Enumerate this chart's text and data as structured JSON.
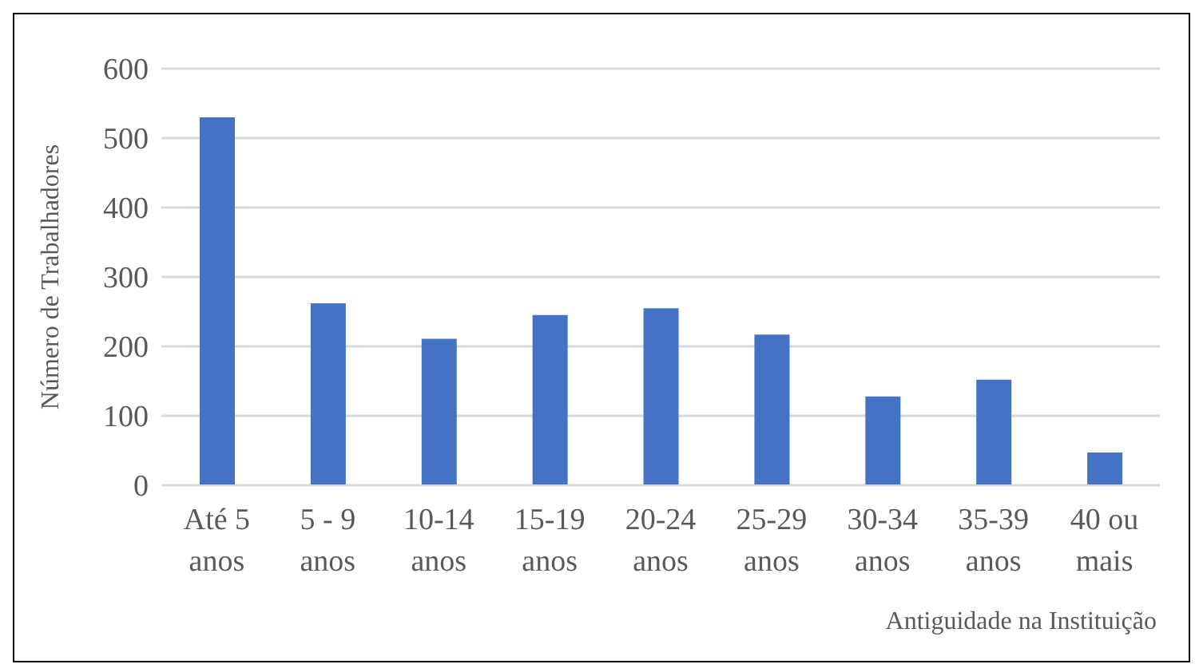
{
  "chart_data": {
    "type": "bar",
    "xlabel": "Antiguidade na Instituição",
    "ylabel": "Número de Trabalhadores",
    "categories": [
      "Até 5 anos",
      "5 - 9 anos",
      "10-14 anos",
      "15-19 anos",
      "20-24 anos",
      "25-29 anos",
      "30-34 anos",
      "35-39 anos",
      "40 ou mais"
    ],
    "values": [
      530,
      262,
      211,
      245,
      255,
      217,
      128,
      152,
      47
    ],
    "color": "#4472c4",
    "ylim": [
      0,
      600
    ],
    "yticks": [
      0,
      100,
      200,
      300,
      400,
      500,
      600
    ],
    "grid": "y",
    "legend": false
  }
}
